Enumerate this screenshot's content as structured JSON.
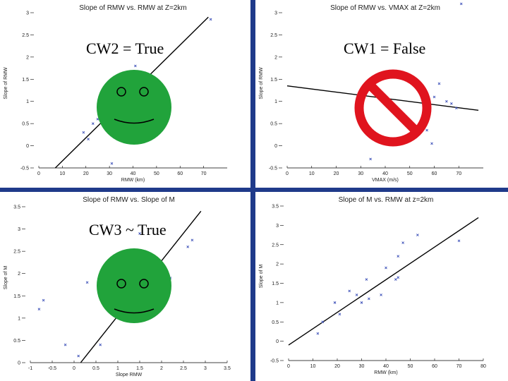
{
  "colors": {
    "divider": "#1f3a8a",
    "smiley": "#21a33b",
    "forbid": "#e0141e",
    "points": "#3b4fb8",
    "line": "#000000"
  },
  "overlays": [
    {
      "text": "CW2 = True",
      "icon": "smiley-face-icon",
      "panel": 0
    },
    {
      "text": "CW1 = False",
      "icon": "prohibition-sign-icon",
      "panel": 1
    },
    {
      "text": "CW3 ~ True",
      "icon": "smiley-face-icon",
      "panel": 2
    }
  ],
  "chart_data": [
    {
      "type": "scatter",
      "title": "Slope of RMW vs. RMW at Z=2km",
      "xlabel": "RMW (km)",
      "ylabel": "Slope of RMW",
      "xlim": [
        0,
        80
      ],
      "ylim": [
        -0.5,
        3
      ],
      "xticks": [
        "0",
        "10",
        "20",
        "30",
        "40",
        "50",
        "60",
        "70"
      ],
      "yticks": [
        "-0.5",
        "0",
        "0.5",
        "1",
        "1.5",
        "2",
        "2.5",
        "3"
      ],
      "points": [
        [
          19,
          0.3
        ],
        [
          21,
          0.15
        ],
        [
          23,
          0.5
        ],
        [
          25,
          0.6
        ],
        [
          31,
          -0.4
        ],
        [
          41,
          1.8
        ],
        [
          73,
          2.85
        ]
      ],
      "fit": [
        [
          7,
          -0.5
        ],
        [
          72,
          2.9
        ]
      ]
    },
    {
      "type": "scatter",
      "title": "Slope of RMW vs. VMAX at Z=2km",
      "xlabel": "VMAX (m/s)",
      "ylabel": "Slope of RMW",
      "xlim": [
        0,
        80
      ],
      "ylim": [
        -0.5,
        3
      ],
      "xticks": [
        "0",
        "10",
        "20",
        "30",
        "40",
        "50",
        "60",
        "70"
      ],
      "yticks": [
        "-0.5",
        "0",
        "0.5",
        "1",
        "1.5",
        "2",
        "2.5",
        "3"
      ],
      "points": [
        [
          34,
          -0.3
        ],
        [
          56,
          0.6
        ],
        [
          57,
          0.35
        ],
        [
          59,
          0.05
        ],
        [
          60,
          1.1
        ],
        [
          62,
          1.4
        ],
        [
          65,
          1.0
        ],
        [
          67,
          0.95
        ],
        [
          69,
          0.85
        ],
        [
          71,
          3.2
        ]
      ],
      "fit": [
        [
          0,
          1.35
        ],
        [
          78,
          0.8
        ]
      ]
    },
    {
      "type": "scatter",
      "title": "Slope of RMW vs. Slope of M",
      "xlabel": "Slope RMW",
      "ylabel": "Slope of M",
      "xlim": [
        -1,
        3.5
      ],
      "ylim": [
        0,
        3.5
      ],
      "xticks": [
        "-1",
        "-0.5",
        "0",
        "0.5",
        "1",
        "1.5",
        "2",
        "2.5",
        "3",
        "3.5"
      ],
      "yticks": [
        "0",
        "0.5",
        "1",
        "1.5",
        "2",
        "2.5",
        "3",
        "3.5"
      ],
      "points": [
        [
          -0.8,
          1.2
        ],
        [
          -0.7,
          1.4
        ],
        [
          -0.2,
          0.4
        ],
        [
          0.1,
          0.15
        ],
        [
          0.3,
          1.8
        ],
        [
          0.6,
          0.4
        ],
        [
          1.5,
          2.9
        ],
        [
          1.8,
          2.4
        ],
        [
          2.2,
          1.9
        ],
        [
          2.6,
          2.6
        ],
        [
          2.7,
          2.75
        ]
      ],
      "fit": [
        [
          0.15,
          0
        ],
        [
          2.9,
          3.4
        ]
      ]
    },
    {
      "type": "scatter",
      "title": "Slope of M vs. RMW at z=2km",
      "xlabel": "RMW (km)",
      "ylabel": "Slope of M",
      "xlim": [
        0,
        80
      ],
      "ylim": [
        -0.5,
        3.5
      ],
      "xticks": [
        "0",
        "10",
        "20",
        "30",
        "40",
        "50",
        "60",
        "70",
        "80"
      ],
      "yticks": [
        "-0.5",
        "0",
        "0.5",
        "1",
        "1.5",
        "2",
        "2.5",
        "3",
        "3.5"
      ],
      "points": [
        [
          12,
          0.2
        ],
        [
          14,
          0.5
        ],
        [
          19,
          1.0
        ],
        [
          21,
          0.7
        ],
        [
          25,
          1.3
        ],
        [
          28,
          1.2
        ],
        [
          30,
          1.0
        ],
        [
          32,
          1.6
        ],
        [
          33,
          1.1
        ],
        [
          38,
          1.2
        ],
        [
          40,
          1.9
        ],
        [
          44,
          1.6
        ],
        [
          45,
          1.65
        ],
        [
          45,
          2.2
        ],
        [
          47,
          2.55
        ],
        [
          53,
          2.75
        ],
        [
          70,
          2.6
        ]
      ],
      "fit": [
        [
          0,
          -0.1
        ],
        [
          78,
          3.2
        ]
      ]
    }
  ]
}
